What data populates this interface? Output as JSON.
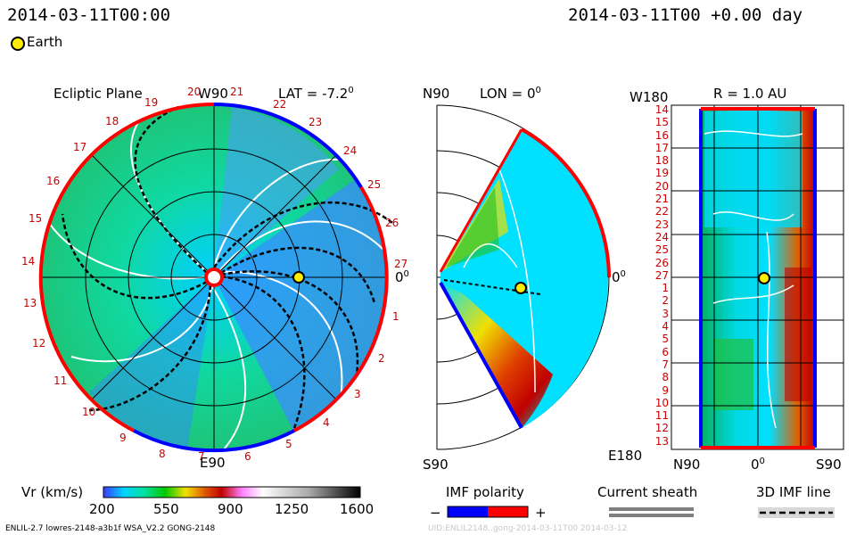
{
  "header": {
    "left_datetime": "2014-03-11T00:00",
    "right_datetime": "2014-03-11T00 +0.00 day",
    "legend_earth": "Earth"
  },
  "ecliptic": {
    "title": "Ecliptic Plane",
    "top_label": "W90",
    "bottom_label": "E90",
    "right_label": "0",
    "right_sup": "0",
    "lat_label": "LAT = -7.2",
    "lat_sup": "0",
    "rotation_ticks": [
      "20",
      "21",
      "22",
      "23",
      "24",
      "25",
      "26",
      "27",
      "1",
      "2",
      "3",
      "4",
      "5",
      "6",
      "7",
      "8",
      "9",
      "10",
      "11",
      "12",
      "13",
      "14",
      "15",
      "16",
      "17",
      "18",
      "19"
    ]
  },
  "meridional": {
    "top_label": "N90",
    "bottom_label": "S90",
    "lon_label": "LON = 0",
    "lon_sup": "0",
    "right_label": "0",
    "right_sup": "0"
  },
  "radial": {
    "title": "R = 1.0 AU",
    "top_left": "W180",
    "bottom_left": "E180",
    "x_labels": [
      "N90",
      "0",
      "S90"
    ],
    "x_mid_sup": "0",
    "y_ticks": [
      "14",
      "15",
      "16",
      "17",
      "18",
      "19",
      "20",
      "21",
      "22",
      "23",
      "24",
      "25",
      "26",
      "27",
      "1",
      "2",
      "3",
      "4",
      "5",
      "6",
      "7",
      "8",
      "9",
      "10",
      "11",
      "12",
      "13"
    ]
  },
  "colorbar": {
    "label": "Vr (km/s)",
    "ticks": [
      "200",
      "550",
      "900",
      "1250",
      "1600"
    ],
    "colors": [
      "#3a3aff",
      "#00d5ff",
      "#00e0a0",
      "#00c800",
      "#f0e000",
      "#e05000",
      "#c00000",
      "#ff80ff",
      "#ffffff",
      "#aaaaaa",
      "#000000"
    ]
  },
  "imf_polarity": {
    "label": "IMF polarity",
    "minus": "−",
    "plus": "+",
    "neg_color": "#0000ff",
    "pos_color": "#ff0000"
  },
  "current_sheath": {
    "label": "Current sheath"
  },
  "imf_line": {
    "label": "3D IMF line"
  },
  "footer": {
    "left": "ENLIL-2.7 lowres-2148-a3b1f WSA_V2.2 GONG-2148",
    "right": "UID:ENLIL2148..gong-2014-03-11T00 2014-03-12"
  }
}
